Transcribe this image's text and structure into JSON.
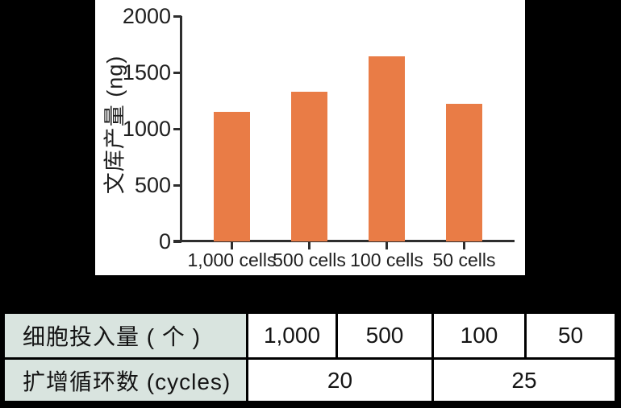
{
  "colors": {
    "background": "#000000",
    "panel": "#FFFFFF",
    "axis": "#2E2E2E",
    "text": "#1F1F1F"
  },
  "chart_data": {
    "type": "bar",
    "title": "",
    "categories": [
      "1,000 cells",
      "500 cells",
      "100 cells",
      "50 cells"
    ],
    "values": [
      1150,
      1330,
      1640,
      1220
    ],
    "xlabel": "",
    "ylabel": "文库产量 (ng)",
    "ylim": [
      0,
      2000
    ],
    "yticks": [
      0,
      500,
      1000,
      1500,
      2000
    ],
    "grid": false,
    "legend": "none",
    "bar_color": "#E97C46"
  },
  "table": {
    "header_bg": "#D9E4DF",
    "rows": [
      {
        "header": "细胞投入量 ( 个 )",
        "cells": [
          "1,000",
          "500",
          "100",
          "50"
        ]
      },
      {
        "header": "扩增循环数 (cycles)",
        "cells": [
          "20",
          "25"
        ]
      }
    ]
  }
}
